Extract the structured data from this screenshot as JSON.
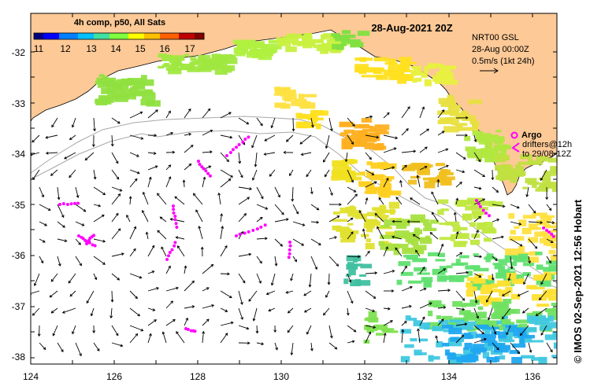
{
  "colorbar": {
    "title": "4h comp, p50, All Sats",
    "tick_labels": [
      "11",
      "12",
      "13",
      "14",
      "15",
      "16",
      "17"
    ],
    "colors": [
      "#000080",
      "#0000ff",
      "#0080ff",
      "#00c0ff",
      "#40e0a0",
      "#80ff40",
      "#ffff00",
      "#ffc000",
      "#ff6000",
      "#c00000",
      "#800000"
    ]
  },
  "date_label": "28-Aug-2021 20Z",
  "velocity_info": {
    "line1": "NRT00 GSL",
    "line2": "28-Aug 00:00Z",
    "line3": "0.5m/s (1kt 24h)"
  },
  "argo_legend": {
    "argo_label": "Argo",
    "drifters_label": "drifters@12h",
    "drifters_range": "to 29/08-12Z"
  },
  "axes": {
    "x_ticks": [
      "124",
      "126",
      "128",
      "130",
      "132",
      "134",
      "136"
    ],
    "y_ticks": [
      "-32",
      "-33",
      "-34",
      "-35",
      "-36",
      "-37",
      "-38"
    ],
    "x_range": [
      124,
      136.6
    ],
    "y_range": [
      -38.15,
      -31.3
    ]
  },
  "stamp": "© IMOS 02-Sep-2021 12:56 Hobart",
  "colors": {
    "land": "#fdc996",
    "drifter": "#ff00ff",
    "bathy": "#a8a8a8",
    "arrow": "#000000"
  }
}
